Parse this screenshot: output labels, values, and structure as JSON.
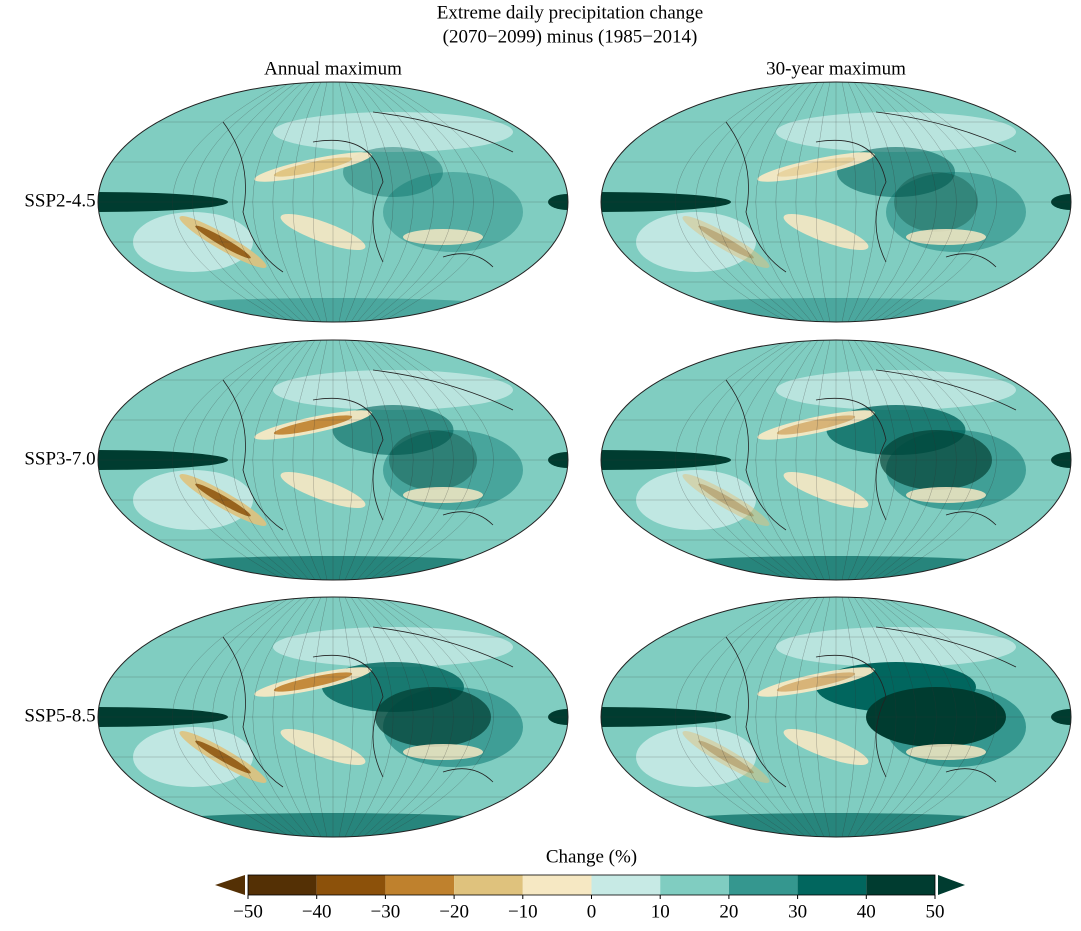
{
  "chart_data": {
    "type": "map",
    "title": [
      "Extreme daily precipitation change",
      "(2070−2099) minus (1985−2014)"
    ],
    "columns": [
      "Annual maximum",
      "30-year maximum"
    ],
    "rows": [
      "SSP2-4.5",
      "SSP3-7.0",
      "SSP5-8.5"
    ],
    "colorbar": {
      "label": "Change (%)",
      "lim": [
        -50,
        50
      ],
      "ticks": [
        {
          "value": -50,
          "label": "−50"
        },
        {
          "value": -40,
          "label": "−40"
        },
        {
          "value": -30,
          "label": "−30"
        },
        {
          "value": -20,
          "label": "−20"
        },
        {
          "value": -10,
          "label": "−10"
        },
        0,
        10,
        20,
        30,
        40,
        50
      ],
      "colors": [
        "#543005",
        "#8c510a",
        "#bf812d",
        "#dfc27d",
        "#f6e8c3",
        "#c7eae5",
        "#80cdc1",
        "#35978f",
        "#01665e",
        "#003c30"
      ],
      "extend": "both"
    }
  }
}
